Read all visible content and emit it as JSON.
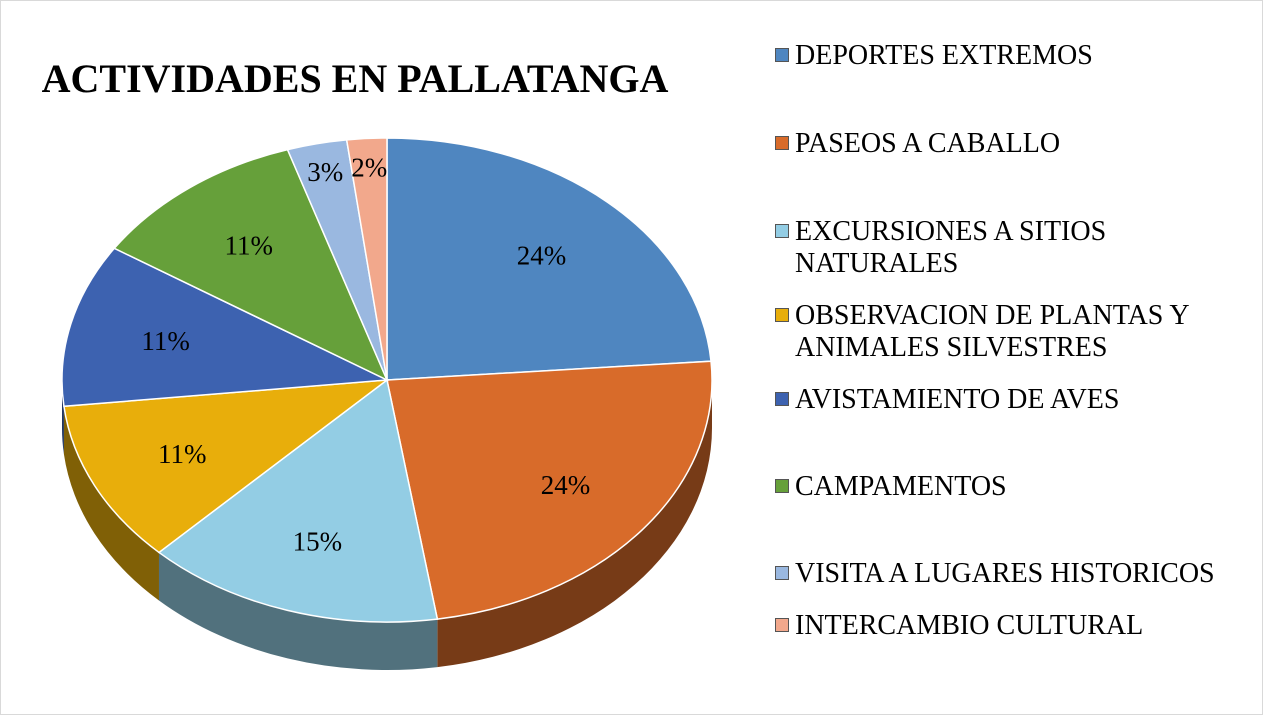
{
  "chart_data": {
    "type": "pie",
    "title": "ACTIVIDADES EN PALLATANGA",
    "categories": [
      "DEPORTES EXTREMOS",
      "PASEOS A CABALLO",
      "EXCURSIONES A SITIOS NATURALES",
      "OBSERVACION DE PLANTAS Y ANIMALES SILVESTRES",
      "AVISTAMIENTO DE AVES",
      "CAMPAMENTOS",
      "VISITA A LUGARES HISTORICOS",
      "INTERCAMBIO CULTURAL"
    ],
    "values": [
      24,
      24,
      15,
      11,
      11,
      11,
      3,
      2
    ],
    "value_labels": [
      "24%",
      "24%",
      "15%",
      "11%",
      "11%",
      "11%",
      "3%",
      "2%"
    ],
    "colors": [
      "#4f86c0",
      "#d86b2a",
      "#93cde4",
      "#e8ae0b",
      "#3d62b0",
      "#66a03a",
      "#9ab8e0",
      "#f2a88c"
    ],
    "legend": "right"
  }
}
